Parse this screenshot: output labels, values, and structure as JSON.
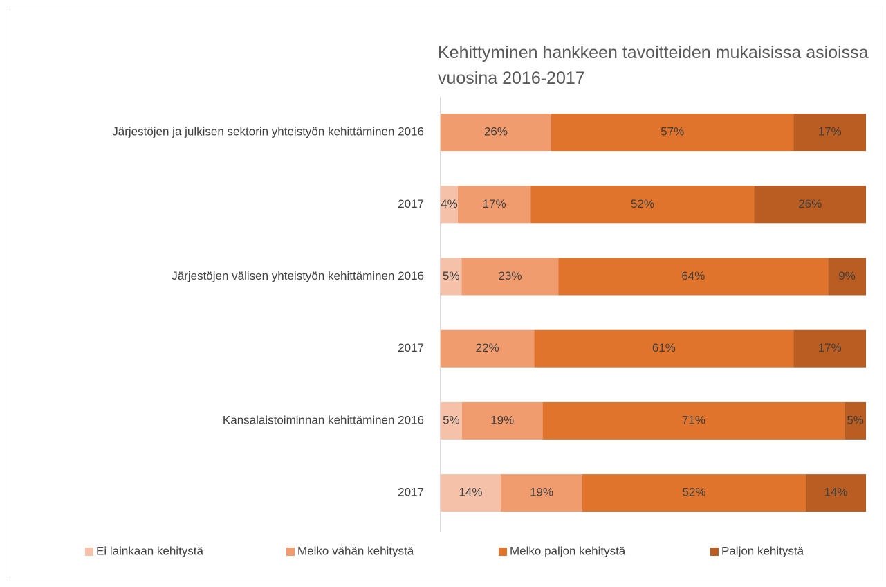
{
  "chart_data": {
    "type": "bar",
    "orientation": "horizontal",
    "stacking": "percent",
    "title": "Kehittyminen hankkeen tavoitteiden mukaisissa asioissa vuosina 2016-2017",
    "categories": [
      "Järjestöjen ja julkisen sektorin yhteistyön kehittäminen 2016",
      "2017",
      "Järjestöjen välisen yhteistyön kehittäminen 2016",
      "2017",
      "Kansalaistoiminnan kehittäminen 2016",
      "2017"
    ],
    "series": [
      {
        "name": "Ei lainkaan kehitystä",
        "color": "#f5c2a9",
        "values": [
          null,
          4,
          5,
          null,
          5,
          14
        ],
        "value_labels": [
          null,
          "4%",
          "5%",
          null,
          "5%",
          "14%"
        ]
      },
      {
        "name": "Melko vähän kehitystä",
        "color": "#f19c6f",
        "values": [
          26,
          17,
          23,
          22,
          19,
          19
        ],
        "value_labels": [
          "26%",
          "17%",
          "23%",
          "22%",
          "19%",
          "19%"
        ]
      },
      {
        "name": "Melko paljon kehitystä",
        "color": "#e0742d",
        "values": [
          57,
          52,
          64,
          61,
          71,
          52
        ],
        "value_labels": [
          "57%",
          "52%",
          "64%",
          "61%",
          "71%",
          "52%"
        ]
      },
      {
        "name": "Paljon kehitystä",
        "color": "#b95d22",
        "values": [
          17,
          26,
          9,
          17,
          5,
          14
        ],
        "value_labels": [
          "17%",
          "26%",
          "9%",
          "17%",
          "5%",
          "14%"
        ]
      }
    ],
    "legend": "bottom"
  }
}
